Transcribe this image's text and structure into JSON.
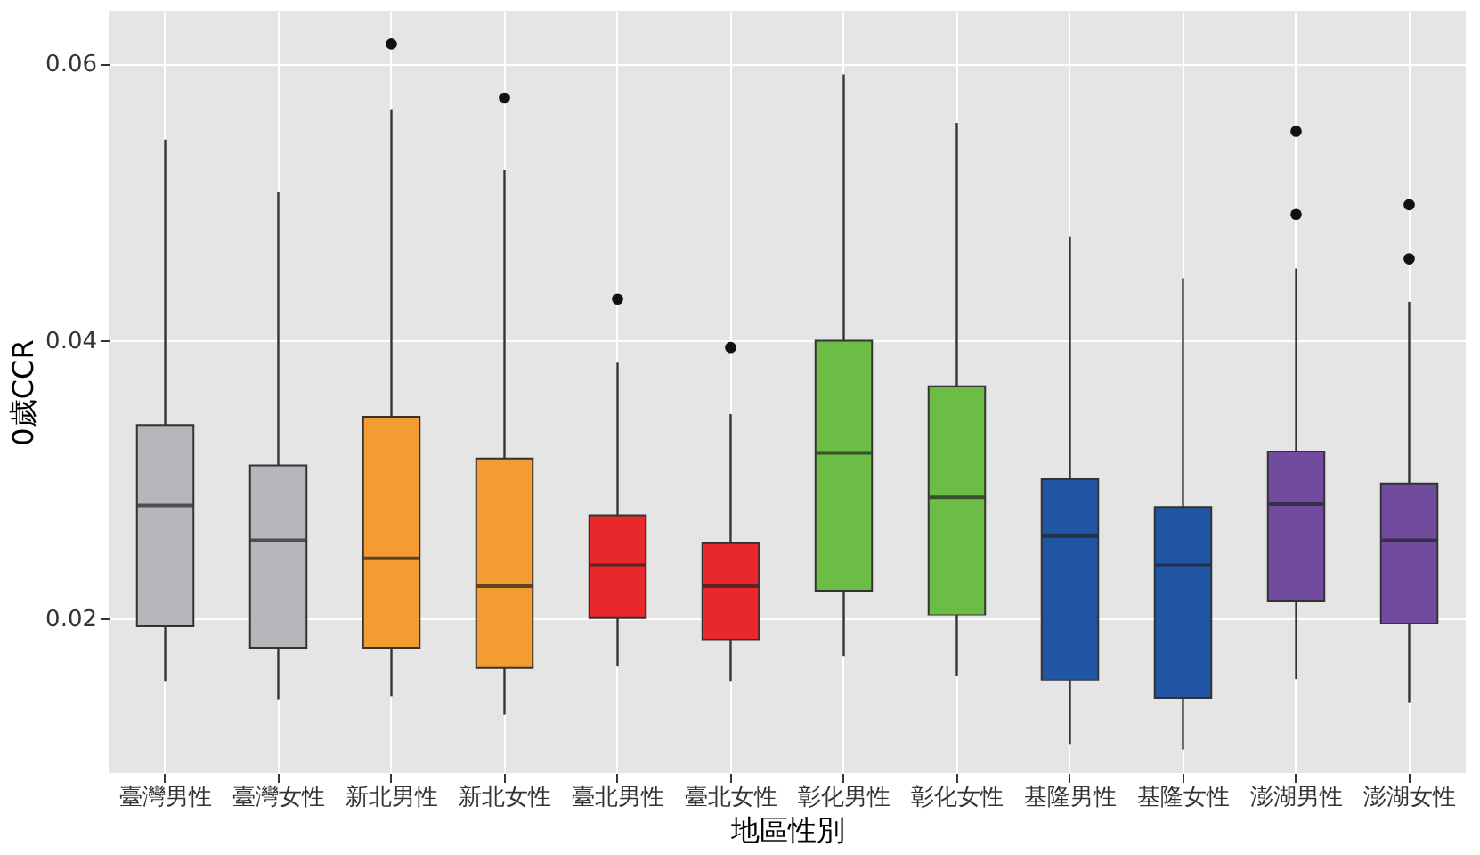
{
  "chart_data": {
    "type": "box",
    "xlabel": "地區性別",
    "ylabel": "0歲CCR",
    "categories": [
      "臺灣男性",
      "臺灣女性",
      "新北男性",
      "新北女性",
      "臺北男性",
      "臺北女性",
      "彰化男性",
      "彰化女性",
      "基隆男性",
      "基隆女性",
      "澎湖男性",
      "澎湖女性"
    ],
    "colors": [
      "#b4b6b9",
      "#b4b6b9",
      "#f39c31",
      "#f39c31",
      "#e8282a",
      "#e8282a",
      "#6cbd45",
      "#6cbd45",
      "#2156a5",
      "#2156a5",
      "#714c9e",
      "#714c9e"
    ],
    "boxes": [
      {
        "low": 0.0154,
        "q1": 0.0194,
        "median": 0.0281,
        "q3": 0.0339,
        "high": 0.0545
      },
      {
        "low": 0.0141,
        "q1": 0.0178,
        "median": 0.0256,
        "q3": 0.031,
        "high": 0.0507
      },
      {
        "low": 0.0143,
        "q1": 0.0178,
        "median": 0.0243,
        "q3": 0.0345,
        "high": 0.0567,
        "outliers": [
          0.0614
        ]
      },
      {
        "low": 0.013,
        "q1": 0.0164,
        "median": 0.0223,
        "q3": 0.0315,
        "high": 0.0523,
        "outliers": [
          0.0575
        ]
      },
      {
        "low": 0.0165,
        "q1": 0.02,
        "median": 0.0238,
        "q3": 0.0274,
        "high": 0.0384,
        "outliers": [
          0.043
        ]
      },
      {
        "low": 0.0154,
        "q1": 0.0184,
        "median": 0.0223,
        "q3": 0.0254,
        "high": 0.0347,
        "outliers": [
          0.0395
        ]
      },
      {
        "low": 0.0172,
        "q1": 0.0219,
        "median": 0.0319,
        "q3": 0.04,
        "high": 0.0592
      },
      {
        "low": 0.0158,
        "q1": 0.0202,
        "median": 0.0287,
        "q3": 0.0367,
        "high": 0.0557
      },
      {
        "low": 0.0109,
        "q1": 0.0155,
        "median": 0.0259,
        "q3": 0.03,
        "high": 0.0475
      },
      {
        "low": 0.0105,
        "q1": 0.0142,
        "median": 0.0238,
        "q3": 0.028,
        "high": 0.0445
      },
      {
        "low": 0.0156,
        "q1": 0.0212,
        "median": 0.0282,
        "q3": 0.032,
        "high": 0.0452,
        "outliers": [
          0.0551,
          0.0491
        ]
      },
      {
        "low": 0.0139,
        "q1": 0.0196,
        "median": 0.0256,
        "q3": 0.0297,
        "high": 0.0428,
        "outliers": [
          0.0498,
          0.0459
        ]
      }
    ],
    "ylim": [
      0.0088,
      0.0638
    ],
    "yticks": [
      0.02,
      0.04,
      0.06
    ],
    "grid": true,
    "legend": false
  }
}
